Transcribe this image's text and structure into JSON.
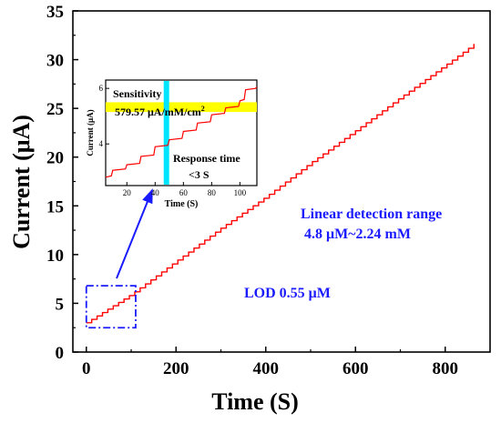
{
  "chart_data": [
    {
      "type": "line",
      "title": "",
      "xlabel": "Time (S)",
      "ylabel": "Current (μA)",
      "xlim": [
        -30,
        900
      ],
      "ylim": [
        0,
        35
      ],
      "xticks": [
        0,
        200,
        400,
        600,
        800
      ],
      "yticks": [
        0,
        5,
        10,
        15,
        20,
        25,
        30,
        35
      ],
      "grid": false,
      "series": [
        {
          "color": "#ff0000",
          "stair_step_seconds": 12,
          "x": [
            0,
            100,
            200,
            300,
            400,
            500,
            600,
            700,
            800,
            865
          ],
          "y": [
            3.0,
            5.9,
            9.3,
            12.7,
            15.9,
            19.4,
            22.7,
            26.1,
            29.4,
            31.6
          ]
        }
      ],
      "annotations": [
        {
          "text": "Linear detection range",
          "color": "#1a1aff"
        },
        {
          "text": "4.8 μM~2.24 mM",
          "color": "#1a1aff"
        },
        {
          "text": "LOD 0.55  μM",
          "color": "#1a1aff"
        }
      ],
      "zoom_box": {
        "x": [
          0,
          110
        ],
        "y": [
          2.5,
          6.8
        ],
        "color": "#1a1aff"
      }
    },
    {
      "type": "line",
      "inset": true,
      "xlabel": "Time (S)",
      "ylabel": "Current (μA)",
      "xlim": [
        5,
        112
      ],
      "ylim": [
        2.5,
        6.3
      ],
      "xticks": [
        20,
        40,
        60,
        80,
        100
      ],
      "yticks": [
        4,
        6
      ],
      "series": [
        {
          "color": "#ff0000",
          "x": [
            5,
            10,
            20,
            30,
            40,
            50,
            60,
            70,
            80,
            90,
            100,
            104,
            112
          ],
          "y": [
            2.8,
            3.05,
            3.25,
            3.55,
            3.9,
            4.15,
            4.45,
            4.75,
            5.05,
            5.3,
            5.55,
            5.95,
            6.05
          ]
        }
      ],
      "highlight_band": {
        "y_range": [
          5.15,
          5.5
        ],
        "color": "#ffff00"
      },
      "marker_line": {
        "x": 48,
        "color": "#00e5ff"
      },
      "annotations": [
        {
          "text": "Sensitivity"
        },
        {
          "text": "579.57 μA/mM/cm",
          "superscript": "2"
        },
        {
          "text": "Response time"
        },
        {
          "text": "<3 S"
        }
      ]
    }
  ]
}
